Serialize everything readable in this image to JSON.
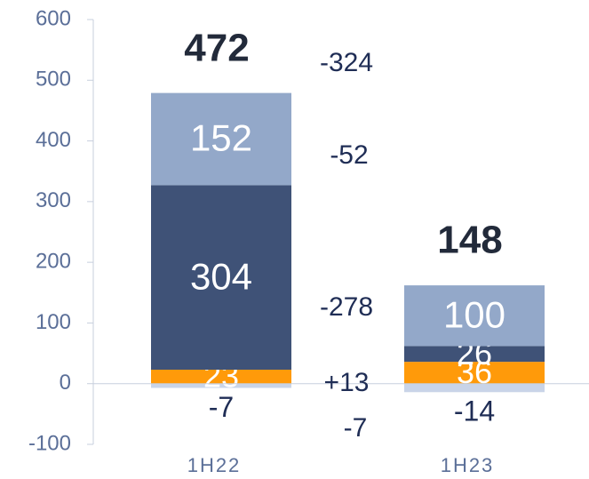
{
  "chart_data": {
    "type": "stacked_bar",
    "categories": [
      "1H22",
      "1H23"
    ],
    "series": [
      {
        "color": "#c9d4e8",
        "values": [
          -7,
          -14
        ]
      },
      {
        "color": "#ff9a0a",
        "values": [
          23,
          36
        ]
      },
      {
        "color": "#3f5277",
        "values": [
          304,
          26
        ]
      },
      {
        "color": "#93a8c9",
        "values": [
          152,
          100
        ]
      }
    ],
    "totals": [
      472,
      148
    ],
    "annotations": [
      "-324",
      "-52",
      "-278",
      "+13",
      "-7"
    ],
    "ylim": [
      -100,
      600
    ],
    "yticks": [
      -100,
      0,
      100,
      200,
      300,
      400,
      500,
      600
    ]
  }
}
